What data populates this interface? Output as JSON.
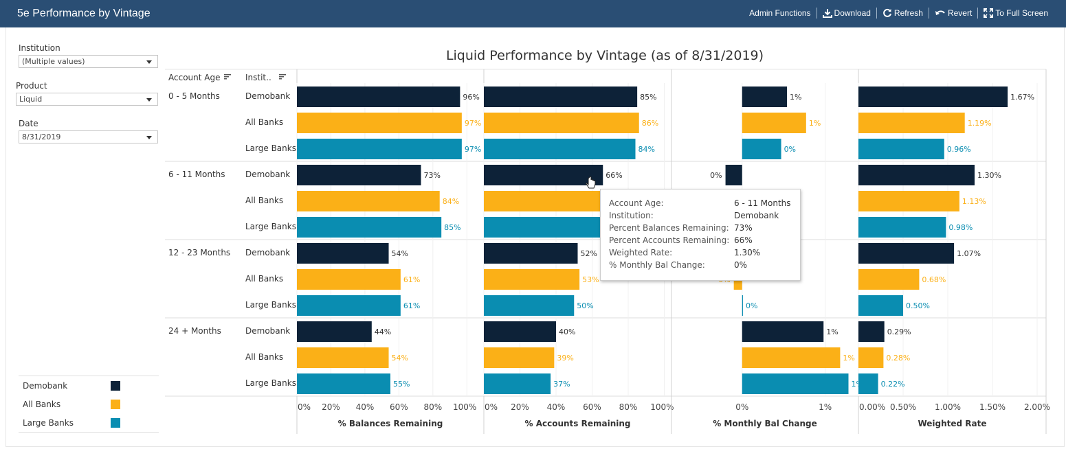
{
  "app": {
    "title": "5e Performance by Vintage",
    "toolbar": {
      "admin": "Admin Functions",
      "download": "Download",
      "refresh": "Refresh",
      "revert": "Revert",
      "fullscreen": "To Full Screen"
    }
  },
  "filters": {
    "institution": {
      "label": "Institution",
      "value": "(Multiple values)"
    },
    "product": {
      "label": "Product",
      "value": "Liquid"
    },
    "date": {
      "label": "Date",
      "value": "8/31/2019"
    }
  },
  "legend": [
    {
      "label": "Demobank",
      "color": "#0d2238"
    },
    {
      "label": "All Banks",
      "color": "#fbb017"
    },
    {
      "label": "Large Banks",
      "color": "#0a8db1"
    }
  ],
  "colors": {
    "demobank": "#0d2238",
    "all_banks": "#fbb017",
    "large_banks": "#0a8db1"
  },
  "chart_data": {
    "type": "bar",
    "title": "Liquid Performance by Vintage (as of 8/31/2019)",
    "row_headers": [
      "Account Age",
      "Instit.."
    ],
    "groups": [
      "0 - 5 Months",
      "6 - 11 Months",
      "12 - 23 Months",
      "24 + Months"
    ],
    "institutions": [
      "Demobank",
      "All Banks",
      "Large Banks"
    ],
    "panels": [
      {
        "name": "% Balances Remaining",
        "xlim": [
          0,
          1.1
        ],
        "ticks": [
          0,
          0.2,
          0.4,
          0.6,
          0.8,
          1.0
        ],
        "tick_labels": [
          "0%",
          "20%",
          "40%",
          "60%",
          "80%",
          "100%"
        ],
        "values": [
          [
            0.96,
            0.97,
            0.97
          ],
          [
            0.73,
            0.84,
            0.85
          ],
          [
            0.54,
            0.61,
            0.61
          ],
          [
            0.44,
            0.54,
            0.55
          ]
        ],
        "labels": [
          [
            "96%",
            "97%",
            "97%"
          ],
          [
            "73%",
            "84%",
            "85%"
          ],
          [
            "54%",
            "61%",
            "61%"
          ],
          [
            "44%",
            "54%",
            "55%"
          ]
        ]
      },
      {
        "name": "% Accounts Remaining",
        "xlim": [
          0,
          1.04
        ],
        "ticks": [
          0,
          0.2,
          0.4,
          0.6,
          0.8,
          1.0
        ],
        "tick_labels": [
          "0%",
          "20%",
          "40%",
          "60%",
          "80%",
          "100%"
        ],
        "values": [
          [
            0.85,
            0.86,
            0.84
          ],
          [
            0.66,
            0.86,
            0.85
          ],
          [
            0.52,
            0.53,
            0.5
          ],
          [
            0.4,
            0.39,
            0.37
          ]
        ],
        "labels": [
          [
            "85%",
            "86%",
            "84%"
          ],
          [
            "66%",
            "",
            ""
          ],
          [
            "52%",
            "53%",
            "50%"
          ],
          [
            "40%",
            "39%",
            "37%"
          ]
        ]
      },
      {
        "name": "% Monthly Bal Change",
        "xlim": [
          -0.0085,
          0.014
        ],
        "ticks": [
          0,
          0.01
        ],
        "tick_labels": [
          "0%",
          "1%"
        ],
        "values": [
          [
            0.0054,
            0.0077,
            0.0047
          ],
          [
            -0.002,
            0.0,
            0.0
          ],
          [
            0.0,
            -0.001,
            0.0001
          ],
          [
            0.0098,
            0.0118,
            0.0128
          ]
        ],
        "labels": [
          [
            "1%",
            "1%",
            "0%"
          ],
          [
            "0%",
            "",
            ""
          ],
          [
            "",
            "0%",
            "0%"
          ],
          [
            "1%",
            "1%",
            "1%"
          ]
        ]
      },
      {
        "name": "Weighted Rate",
        "xlim": [
          0,
          0.021
        ],
        "ticks": [
          0,
          0.005,
          0.01,
          0.015,
          0.02
        ],
        "tick_labels": [
          "0.00%",
          "0.50%",
          "1.00%",
          "1.50%",
          "2.00%"
        ],
        "values": [
          [
            0.0167,
            0.0119,
            0.0096
          ],
          [
            0.013,
            0.0113,
            0.0098
          ],
          [
            0.0107,
            0.0068,
            0.005
          ],
          [
            0.0029,
            0.0028,
            0.0022
          ]
        ],
        "labels": [
          [
            "1.67%",
            "1.19%",
            "0.96%"
          ],
          [
            "1.30%",
            "1.13%",
            "0.98%"
          ],
          [
            "1.07%",
            "0.68%",
            "0.50%"
          ],
          [
            "0.29%",
            "0.28%",
            "0.22%"
          ]
        ]
      }
    ]
  },
  "tooltip": {
    "rows": [
      {
        "k": "Account Age:",
        "v": "6 - 11 Months"
      },
      {
        "k": "Institution:",
        "v": "Demobank"
      },
      {
        "k": "Percent Balances Remaining:",
        "v": "73%"
      },
      {
        "k": "Percent Accounts Remaining:",
        "v": "66%"
      },
      {
        "k": "Weighted Rate:",
        "v": "1.30%"
      },
      {
        "k": "% Monthly Bal Change:",
        "v": "0%"
      }
    ]
  }
}
